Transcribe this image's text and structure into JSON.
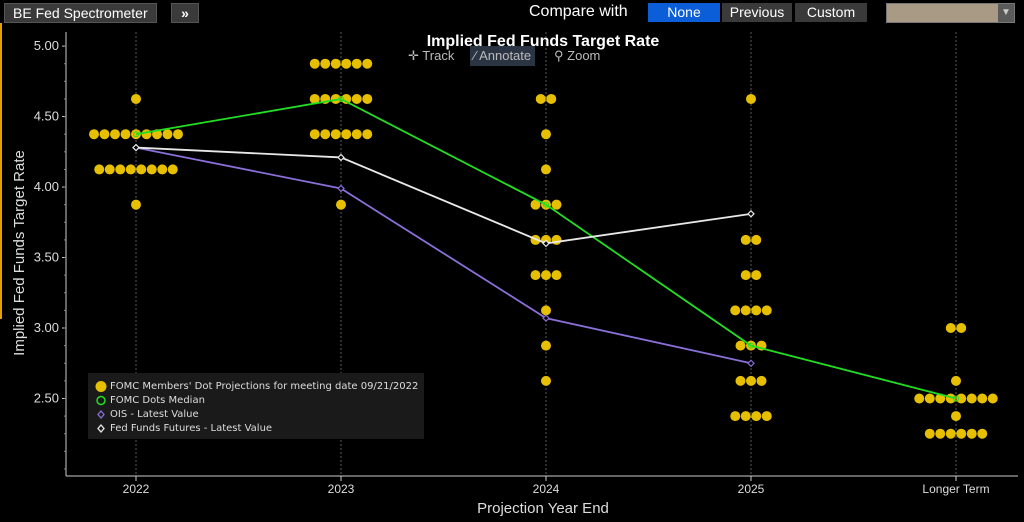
{
  "toolbar": {
    "app_title": "BE Fed Spectrometer",
    "expand_icon": "double-chevron-right-icon",
    "compare_label": "Compare with",
    "compare_options": [
      "None",
      "Previous",
      "Custom"
    ],
    "compare_selected": "None",
    "color_swatch": "#a89a85"
  },
  "chart_tools": {
    "track": "Track",
    "annotate": "Annotate",
    "zoom": "Zoom"
  },
  "legend": {
    "dots": "FOMC Members' Dot Projections for meeting date 09/21/2022",
    "median": "FOMC Dots Median",
    "ois": "OIS - Latest Value",
    "futures": "Fed Funds Futures - Latest Value"
  },
  "chart_data": {
    "type": "scatter",
    "title": "Implied Fed Funds Target Rate",
    "xlabel": "Projection Year End",
    "ylabel": "Implied Fed Funds Target Rate",
    "categories": [
      "2022",
      "2023",
      "2024",
      "2025",
      "Longer Term"
    ],
    "ylim": [
      1.95,
      5.1
    ],
    "yticks": [
      "2.50",
      "3.00",
      "3.50",
      "4.00",
      "4.50",
      "5.00"
    ],
    "grid": "vertical",
    "legend_position": "bottom-left",
    "colors": {
      "dots": "#e6c000",
      "median": "#22dd22",
      "ois": "#8a6fd8",
      "futures": "#e8e8e8",
      "grid": "#5a5a5a"
    },
    "dots": [
      {
        "x": "2022",
        "y": 4.625,
        "count": 1
      },
      {
        "x": "2022",
        "y": 4.375,
        "count": 9
      },
      {
        "x": "2022",
        "y": 4.125,
        "count": 8
      },
      {
        "x": "2022",
        "y": 3.875,
        "count": 1
      },
      {
        "x": "2023",
        "y": 4.875,
        "count": 6
      },
      {
        "x": "2023",
        "y": 4.625,
        "count": 6
      },
      {
        "x": "2023",
        "y": 4.375,
        "count": 6
      },
      {
        "x": "2023",
        "y": 3.875,
        "count": 1
      },
      {
        "x": "2024",
        "y": 4.625,
        "count": 2
      },
      {
        "x": "2024",
        "y": 4.375,
        "count": 1
      },
      {
        "x": "2024",
        "y": 4.125,
        "count": 1
      },
      {
        "x": "2024",
        "y": 3.875,
        "count": 3
      },
      {
        "x": "2024",
        "y": 3.625,
        "count": 3
      },
      {
        "x": "2024",
        "y": 3.375,
        "count": 3
      },
      {
        "x": "2024",
        "y": 3.125,
        "count": 1
      },
      {
        "x": "2024",
        "y": 2.875,
        "count": 1
      },
      {
        "x": "2024",
        "y": 2.625,
        "count": 1
      },
      {
        "x": "2025",
        "y": 4.625,
        "count": 1
      },
      {
        "x": "2025",
        "y": 3.625,
        "count": 2
      },
      {
        "x": "2025",
        "y": 3.375,
        "count": 2
      },
      {
        "x": "2025",
        "y": 3.125,
        "count": 4
      },
      {
        "x": "2025",
        "y": 2.875,
        "count": 3
      },
      {
        "x": "2025",
        "y": 2.625,
        "count": 3
      },
      {
        "x": "2025",
        "y": 2.375,
        "count": 4
      },
      {
        "x": "Longer Term",
        "y": 3.0,
        "count": 2
      },
      {
        "x": "Longer Term",
        "y": 2.625,
        "count": 1
      },
      {
        "x": "Longer Term",
        "y": 2.5,
        "count": 8
      },
      {
        "x": "Longer Term",
        "y": 2.375,
        "count": 1
      },
      {
        "x": "Longer Term",
        "y": 2.25,
        "count": 6
      }
    ],
    "series": [
      {
        "name": "FOMC Dots Median",
        "values": [
          4.375,
          4.625,
          3.875,
          2.875,
          2.5
        ]
      },
      {
        "name": "OIS - Latest Value",
        "values": [
          4.28,
          3.99,
          3.07,
          2.75,
          null
        ]
      },
      {
        "name": "Fed Funds Futures - Latest Value",
        "values": [
          4.28,
          4.21,
          3.6,
          3.81,
          null
        ]
      }
    ]
  }
}
